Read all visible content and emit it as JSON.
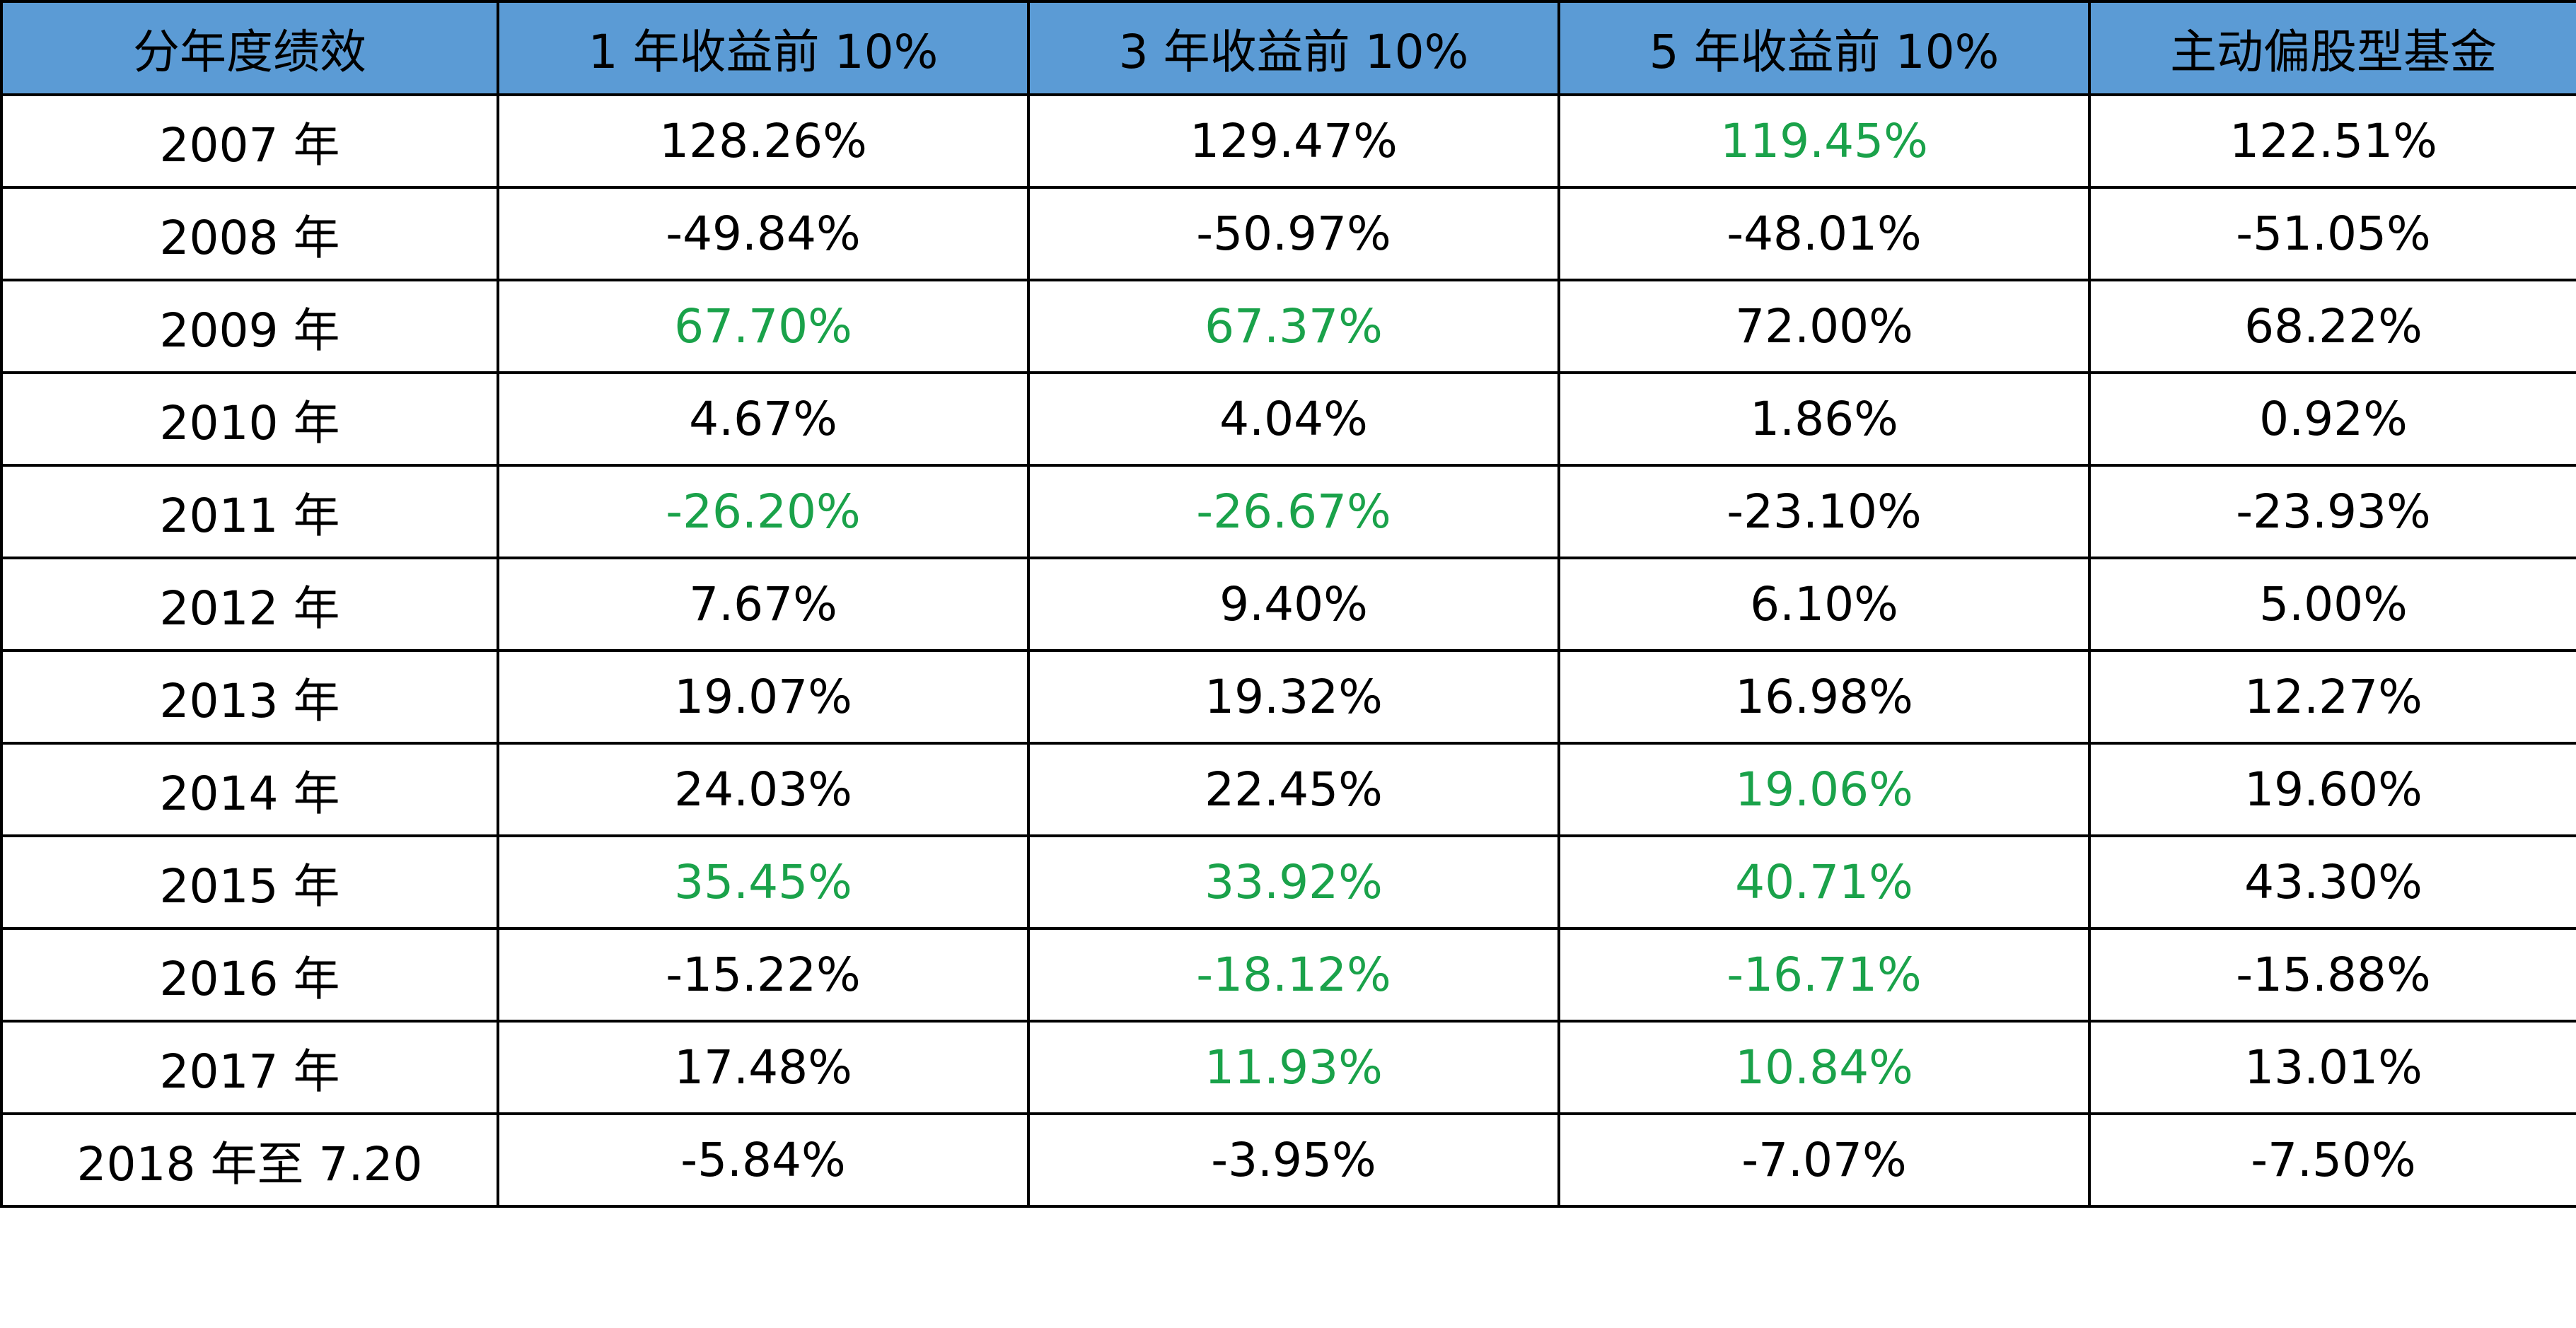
{
  "table": {
    "headers": [
      "分年度绩效",
      "1 年收益前 10%",
      "3 年收益前 10%",
      "5 年收益前 10%",
      "主动偏股型基金"
    ],
    "highlight_color": "#1AA24A",
    "header_color": "#5B9BD5",
    "rows": [
      {
        "cells": [
          "2007 年",
          "128.26%",
          "129.47%",
          "119.45%",
          "122.51%"
        ],
        "highlight": [
          false,
          false,
          false,
          true,
          false
        ]
      },
      {
        "cells": [
          "2008 年",
          "-49.84%",
          "-50.97%",
          "-48.01%",
          "-51.05%"
        ],
        "highlight": [
          false,
          false,
          false,
          false,
          false
        ]
      },
      {
        "cells": [
          "2009 年",
          "67.70%",
          "67.37%",
          "72.00%",
          "68.22%"
        ],
        "highlight": [
          false,
          true,
          true,
          false,
          false
        ]
      },
      {
        "cells": [
          "2010 年",
          "4.67%",
          "4.04%",
          "1.86%",
          "0.92%"
        ],
        "highlight": [
          false,
          false,
          false,
          false,
          false
        ]
      },
      {
        "cells": [
          "2011 年",
          "-26.20%",
          "-26.67%",
          "-23.10%",
          "-23.93%"
        ],
        "highlight": [
          false,
          true,
          true,
          false,
          false
        ]
      },
      {
        "cells": [
          "2012 年",
          "7.67%",
          "9.40%",
          "6.10%",
          "5.00%"
        ],
        "highlight": [
          false,
          false,
          false,
          false,
          false
        ]
      },
      {
        "cells": [
          "2013 年",
          "19.07%",
          "19.32%",
          "16.98%",
          "12.27%"
        ],
        "highlight": [
          false,
          false,
          false,
          false,
          false
        ]
      },
      {
        "cells": [
          "2014 年",
          "24.03%",
          "22.45%",
          "19.06%",
          "19.60%"
        ],
        "highlight": [
          false,
          false,
          false,
          true,
          false
        ]
      },
      {
        "cells": [
          "2015 年",
          "35.45%",
          "33.92%",
          "40.71%",
          "43.30%"
        ],
        "highlight": [
          false,
          true,
          true,
          true,
          false
        ]
      },
      {
        "cells": [
          "2016 年",
          "-15.22%",
          "-18.12%",
          "-16.71%",
          "-15.88%"
        ],
        "highlight": [
          false,
          false,
          true,
          true,
          false
        ]
      },
      {
        "cells": [
          "2017 年",
          "17.48%",
          "11.93%",
          "10.84%",
          "13.01%"
        ],
        "highlight": [
          false,
          false,
          true,
          true,
          false
        ]
      },
      {
        "cells": [
          "2018 年至 7.20",
          "-5.84%",
          "-3.95%",
          "-7.07%",
          "-7.50%"
        ],
        "highlight": [
          false,
          false,
          false,
          false,
          false
        ]
      }
    ]
  }
}
